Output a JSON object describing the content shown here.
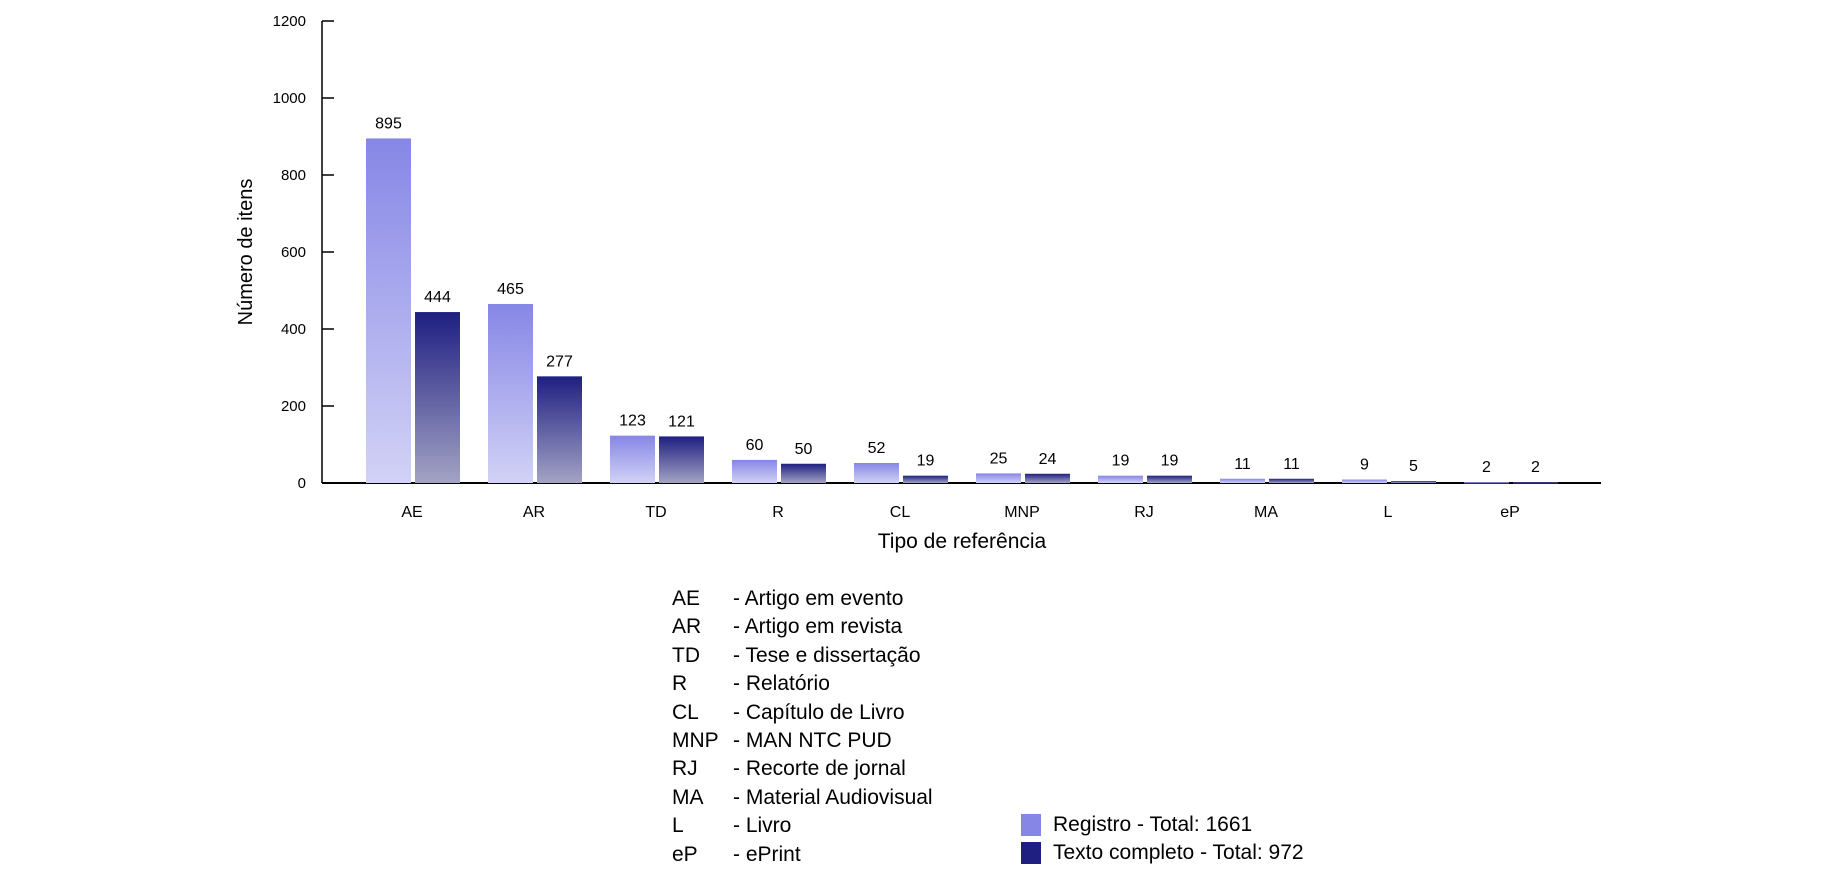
{
  "chart_data": {
    "type": "bar",
    "title": "",
    "xlabel": "Tipo de referência",
    "ylabel": "Número de itens",
    "ylim": [
      0,
      1200
    ],
    "yticks": [
      0,
      200,
      400,
      600,
      800,
      1000,
      1200
    ],
    "categories": [
      "AE",
      "AR",
      "TD",
      "R",
      "CL",
      "MNP",
      "RJ",
      "MA",
      "L",
      "eP"
    ],
    "series": [
      {
        "name": "Registro - Total: 1661",
        "values": [
          895,
          465,
          123,
          60,
          52,
          25,
          19,
          11,
          9,
          2
        ],
        "color": "#8686e6"
      },
      {
        "name": "Texto completo - Total: 972",
        "values": [
          444,
          277,
          121,
          50,
          19,
          24,
          19,
          11,
          5,
          2
        ],
        "color": "#1f1f82"
      }
    ],
    "legend_placement": "bottom",
    "grid": false
  },
  "abbreviations": [
    {
      "code": "AE",
      "desc": "- Artigo em evento"
    },
    {
      "code": "AR",
      "desc": "- Artigo em revista"
    },
    {
      "code": "TD",
      "desc": "- Tese e dissertação"
    },
    {
      "code": "R",
      "desc": "- Relatório"
    },
    {
      "code": "CL",
      "desc": "- Capítulo de Livro"
    },
    {
      "code": "MNP",
      "desc": "- MAN NTC PUD"
    },
    {
      "code": "RJ",
      "desc": "- Recorte de jornal"
    },
    {
      "code": "MA",
      "desc": "- Material Audiovisual"
    },
    {
      "code": "L",
      "desc": "- Livro"
    },
    {
      "code": "eP",
      "desc": "- ePrint"
    }
  ]
}
